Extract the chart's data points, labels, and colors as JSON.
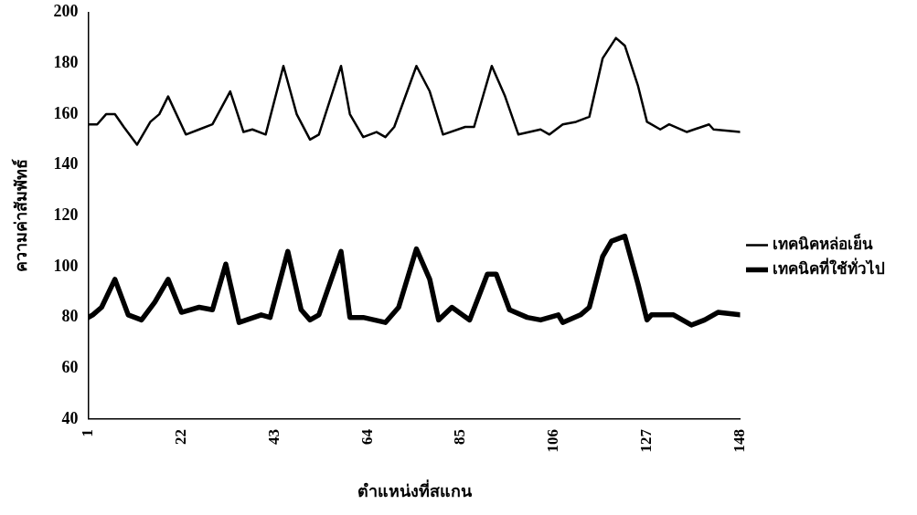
{
  "chart_data": {
    "type": "line",
    "xlabel": "ตำแหน่งที่สแกน",
    "ylabel": "ความค่าสัมพัทธ์",
    "xlim": [
      1,
      148
    ],
    "xticks": [
      1,
      22,
      43,
      64,
      85,
      106,
      127,
      148
    ],
    "ylim": [
      40,
      200
    ],
    "yticks": [
      40,
      60,
      80,
      100,
      120,
      140,
      160,
      180,
      200
    ],
    "grid": false,
    "legend": "right",
    "marker": "none",
    "series": [
      {
        "name": "เทคนิคหล่อเย็น",
        "color": "#000000",
        "x": [
          1,
          3,
          5,
          7,
          9,
          12,
          15,
          17,
          19,
          23,
          26,
          29,
          33,
          36,
          38,
          41,
          45,
          48,
          51,
          53,
          58,
          60,
          63,
          66,
          68,
          70,
          75,
          78,
          81,
          86,
          88,
          92,
          95,
          98,
          103,
          105,
          108,
          111,
          114,
          117,
          120,
          122,
          125,
          127,
          130,
          132,
          136,
          141,
          142,
          148
        ],
        "values": [
          156,
          156,
          160,
          160,
          155,
          148,
          157,
          160,
          167,
          152,
          154,
          156,
          169,
          153,
          154,
          152,
          179,
          160,
          150,
          152,
          179,
          160,
          151,
          153,
          151,
          155,
          179,
          169,
          152,
          155,
          155,
          179,
          167,
          152,
          154,
          152,
          156,
          157,
          159,
          182,
          190,
          187,
          171,
          157,
          154,
          156,
          153,
          156,
          154,
          153
        ]
      },
      {
        "name": "เทคนิคที่ใช้ทั่วไป",
        "color": "#000000",
        "x": [
          1,
          2,
          4,
          7,
          10,
          13,
          16,
          19,
          22,
          26,
          29,
          32,
          35,
          40,
          42,
          46,
          49,
          51,
          53,
          58,
          60,
          63,
          68,
          71,
          75,
          78,
          80,
          83,
          87,
          91,
          93,
          96,
          100,
          103,
          107,
          108,
          112,
          114,
          117,
          119,
          122,
          125,
          127,
          128,
          133,
          137,
          140,
          143,
          148
        ],
        "values": [
          80,
          81,
          84,
          95,
          81,
          79,
          86,
          95,
          82,
          84,
          83,
          101,
          78,
          81,
          80,
          106,
          83,
          79,
          81,
          106,
          80,
          80,
          78,
          84,
          107,
          95,
          79,
          84,
          79,
          97,
          97,
          83,
          80,
          79,
          81,
          78,
          81,
          84,
          104,
          110,
          112,
          93,
          79,
          81,
          81,
          77,
          79,
          82,
          81
        ]
      }
    ]
  }
}
